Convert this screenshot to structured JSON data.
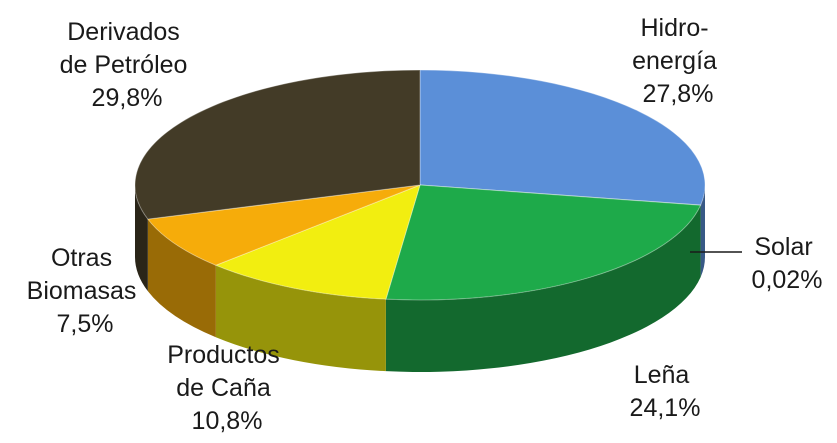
{
  "chart_data": {
    "type": "pie",
    "title": "",
    "style": "3d",
    "legend": "none",
    "slices": [
      {
        "key": "hidro",
        "label_lines": [
          "Hidro-",
          "energía"
        ],
        "value_text": "27,8%",
        "value": 27.8,
        "color": "#5b8fd8"
      },
      {
        "key": "solar",
        "label_lines": [
          "Solar"
        ],
        "value_text": "0,02%",
        "value": 0.02,
        "color": "#1e5a2a"
      },
      {
        "key": "lena",
        "label_lines": [
          "Leña"
        ],
        "value_text": "24,1%",
        "value": 24.1,
        "color": "#1eaa4a"
      },
      {
        "key": "cana",
        "label_lines": [
          "Productos",
          "de Caña"
        ],
        "value_text": "10,8%",
        "value": 10.8,
        "color": "#f2ee10"
      },
      {
        "key": "otras",
        "label_lines": [
          "Otras",
          "Biomasas"
        ],
        "value_text": "7,5%",
        "value": 7.5,
        "color": "#f6ac0a"
      },
      {
        "key": "petroleo",
        "label_lines": [
          "Derivados",
          "de Petróleo"
        ],
        "value_text": "29,8%",
        "value": 29.8,
        "color": "#433b27"
      }
    ]
  }
}
